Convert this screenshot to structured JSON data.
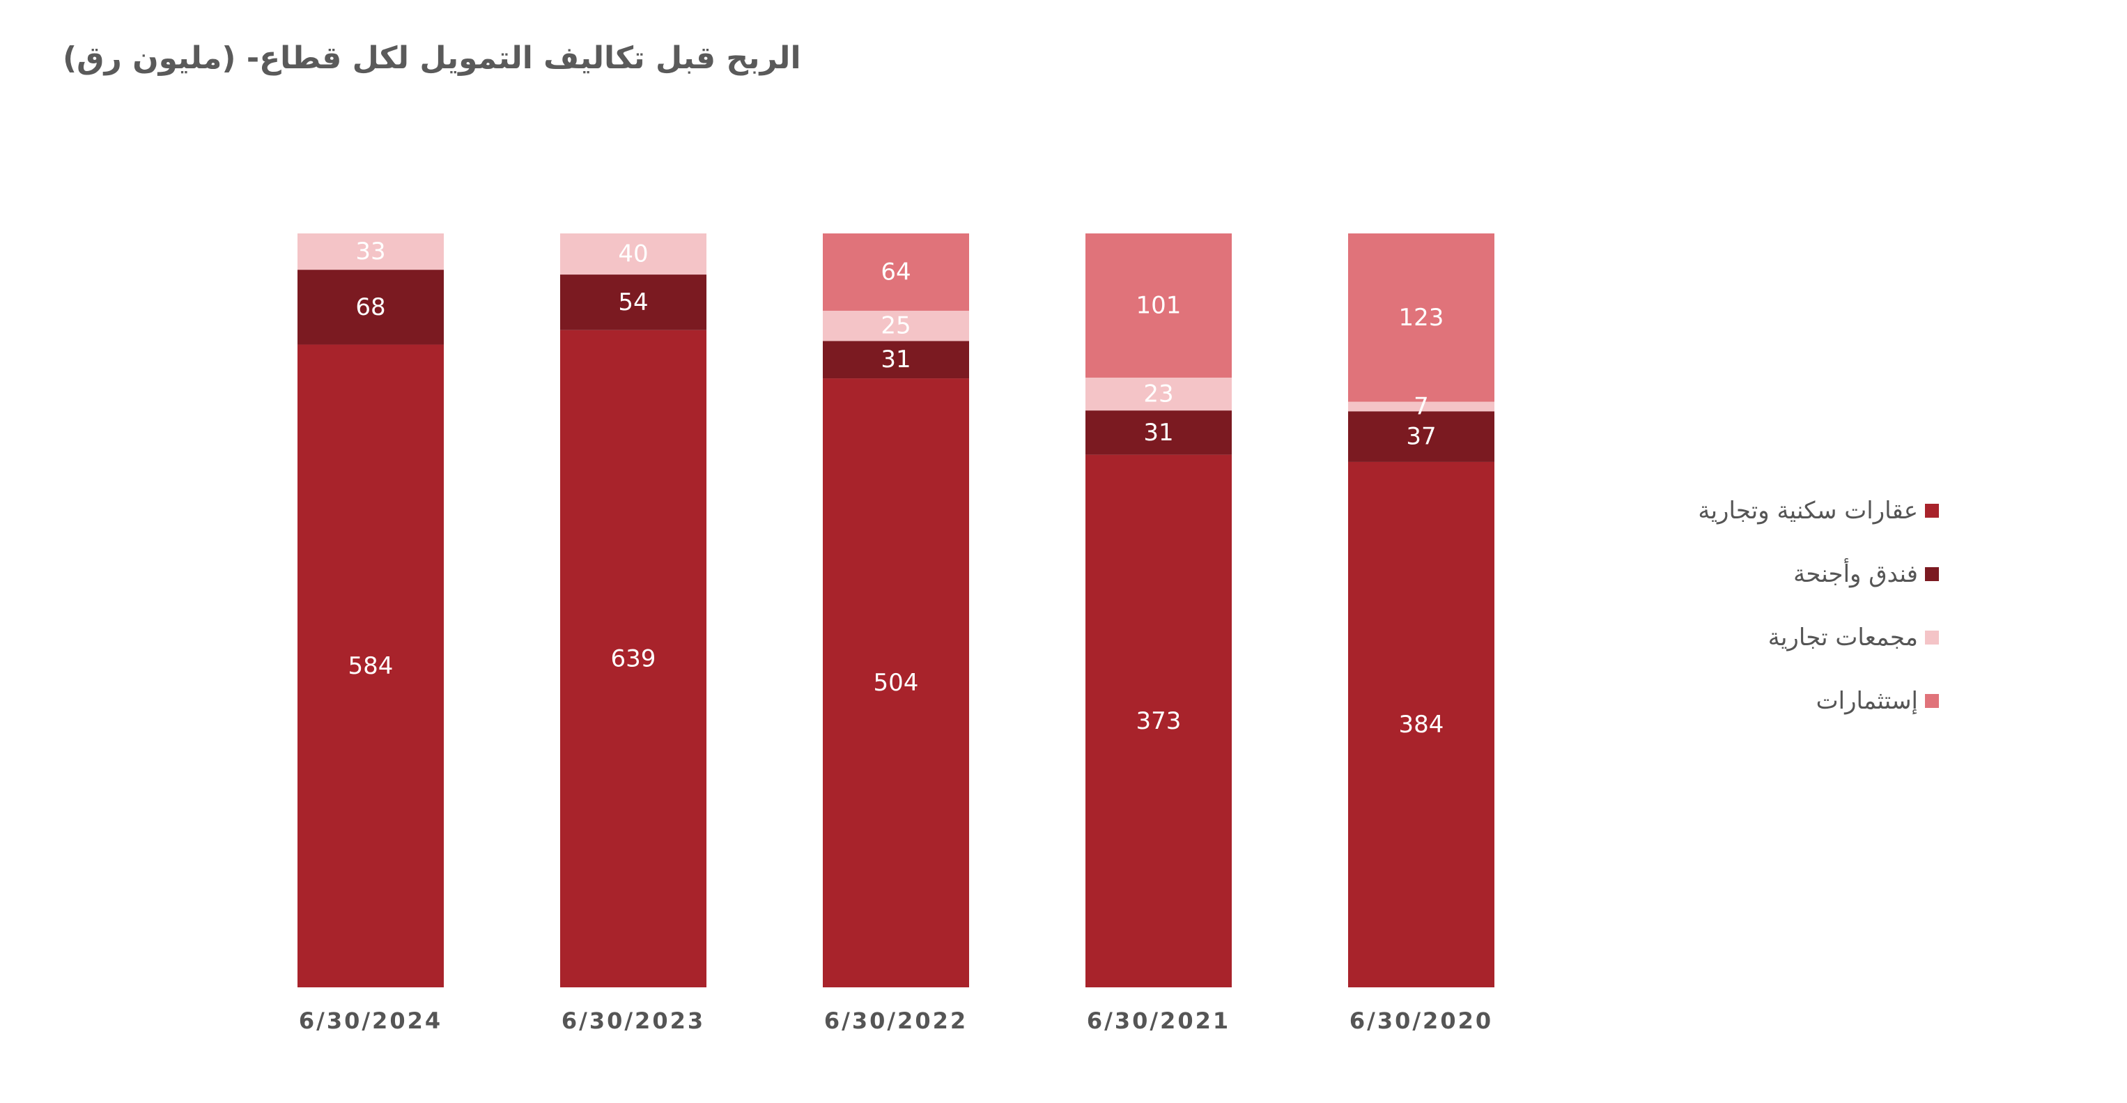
{
  "chart_data": {
    "type": "bar",
    "stacked": true,
    "title": "الربح قبل تكاليف التمويل لكل قطاع- (مليون رق)",
    "categories": [
      "6/30/2024",
      "6/30/2023",
      "6/30/2022",
      "6/30/2021",
      "6/30/2020"
    ],
    "series": [
      {
        "name": "عقارات سكنية وتجارية",
        "color": "#a8232b",
        "values": [
          584,
          639,
          504,
          373,
          384
        ]
      },
      {
        "name": "فندق وأجنحة",
        "color": "#7b1a21",
        "values": [
          68,
          54,
          31,
          31,
          37
        ]
      },
      {
        "name": "مجمعات تجارية",
        "color": "#f4c4c7",
        "values": [
          33,
          40,
          25,
          23,
          7
        ]
      },
      {
        "name": "إستثمارات",
        "color": "#e0737a",
        "values": [
          0,
          0,
          64,
          101,
          123
        ]
      }
    ],
    "normalized_to_100_percent": true,
    "legend_position": "right",
    "grid": false
  }
}
